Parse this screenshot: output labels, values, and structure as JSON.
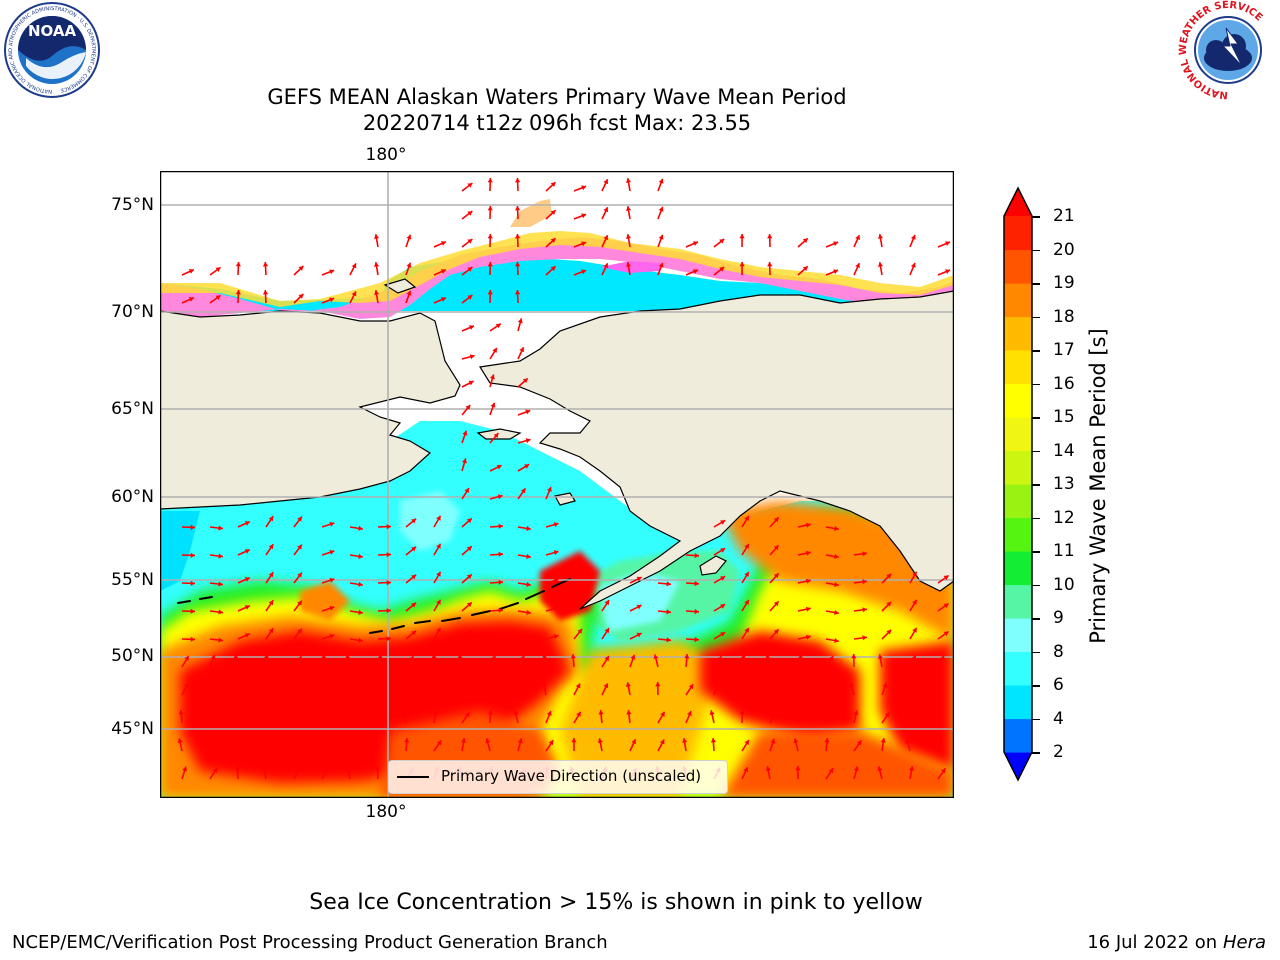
{
  "title": {
    "line1": "GEFS MEAN Alaskan Waters Primary Wave Mean Period",
    "line2": "20220714 t12z 096h fcst   Max: 23.55"
  },
  "map": {
    "lat_ticks": [
      "75°N",
      "70°N",
      "65°N",
      "60°N",
      "55°N",
      "50°N",
      "45°N"
    ],
    "lon_tick_top": "180°",
    "lon_tick_bottom": "180°",
    "legend_label": "Primary Wave Direction (unscaled)",
    "arrow_color": "#ff0000",
    "land_color": "#efecdc"
  },
  "colorbar": {
    "label": "Primary Wave Mean Period [s]",
    "ticks": [
      "21",
      "20",
      "19",
      "18",
      "17",
      "16",
      "15",
      "14",
      "13",
      "12",
      "11",
      "10",
      "9",
      "8",
      "6",
      "4",
      "2"
    ],
    "colors": [
      "#0000ff",
      "#0073ff",
      "#00e5ff",
      "#33ffff",
      "#80ffff",
      "#55f5a5",
      "#11ee33",
      "#55f511",
      "#99f211",
      "#ccf511",
      "#f0f511",
      "#ffff00",
      "#ffe000",
      "#ffbb00",
      "#ff8800",
      "#ff5500",
      "#ff2200",
      "#ff0000"
    ]
  },
  "note": "Sea Ice Concentration > 15% is shown in pink to yellow",
  "footer": {
    "left": "NCEP/EMC/Verification Post Processing Product Generation Branch",
    "date": "16 Jul 2022 on",
    "machine": "Hera"
  },
  "logos": {
    "noaa": "NOAA",
    "noaa_ring": "NATIONAL OCEANIC AND ATMOSPHERIC ADMINISTRATION · U.S. DEPARTMENT OF COMMERCE",
    "nws_ring": "NATIONAL WEATHER SERVICE"
  }
}
